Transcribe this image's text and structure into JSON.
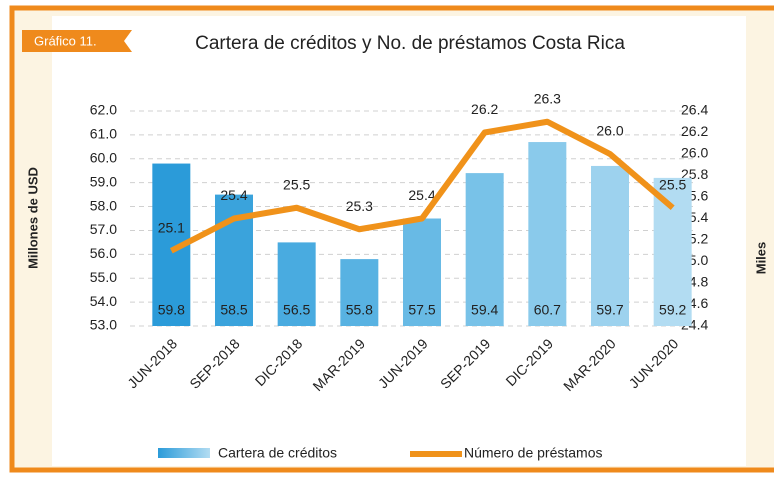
{
  "label": "Gráfico 11.",
  "chart_data": {
    "type": "bar_line",
    "title": "Cartera de créditos y No. de préstamos Costa Rica",
    "ylabel": "Millones de USD",
    "y2label": "Miles",
    "categories": [
      "JUN-2018",
      "SEP-2018",
      "DIC-2018",
      "MAR-2019",
      "JUN-2019",
      "SEP-2019",
      "DIC-2019",
      "MAR-2020",
      "JUN-2020"
    ],
    "series": [
      {
        "name": "Cartera de créditos",
        "type": "bar",
        "axis": "y",
        "colors": [
          "#2b9bd9",
          "#3aa3dc",
          "#49abe0",
          "#58b2e2",
          "#68bae5",
          "#78c2e8",
          "#8acaeb",
          "#9dd2ee",
          "#b2dcf2"
        ],
        "values": [
          59.8,
          58.5,
          56.5,
          55.8,
          57.5,
          59.4,
          60.7,
          59.7,
          59.2
        ]
      },
      {
        "name": "Número de préstamos",
        "type": "line",
        "axis": "y2",
        "color": "#f0921a",
        "values": [
          25.1,
          25.4,
          25.5,
          25.3,
          25.4,
          26.2,
          26.3,
          26.0,
          25.5
        ],
        "value_labels": [
          "25.1",
          "25.4",
          "25.5",
          "25.3",
          "25.4",
          "26.2",
          "26.3",
          "26.0",
          "25.5"
        ]
      }
    ],
    "ylim": [
      53,
      62
    ],
    "yticks": [
      {
        "value": 53,
        "label": "53.0"
      },
      {
        "value": 54,
        "label": "54.0"
      },
      {
        "value": 55,
        "label": "55.0"
      },
      {
        "value": 56,
        "label": "56.0"
      },
      {
        "value": 57,
        "label": "57.0"
      },
      {
        "value": 58,
        "label": "58.0"
      },
      {
        "value": 59,
        "label": "59.0"
      },
      {
        "value": 60,
        "label": "60.0"
      },
      {
        "value": 61,
        "label": "61.0"
      },
      {
        "value": 62,
        "label": "62.0"
      }
    ],
    "y2lim": [
      24.4,
      26.4
    ],
    "y2ticks": [
      24.4,
      24.6,
      24.8,
      {
        "value": 25,
        "label": "25.0"
      },
      25.2,
      25.4,
      25.6,
      25.8,
      {
        "value": 26,
        "label": "26.0"
      },
      26.2,
      26.4
    ],
    "grid": true
  }
}
